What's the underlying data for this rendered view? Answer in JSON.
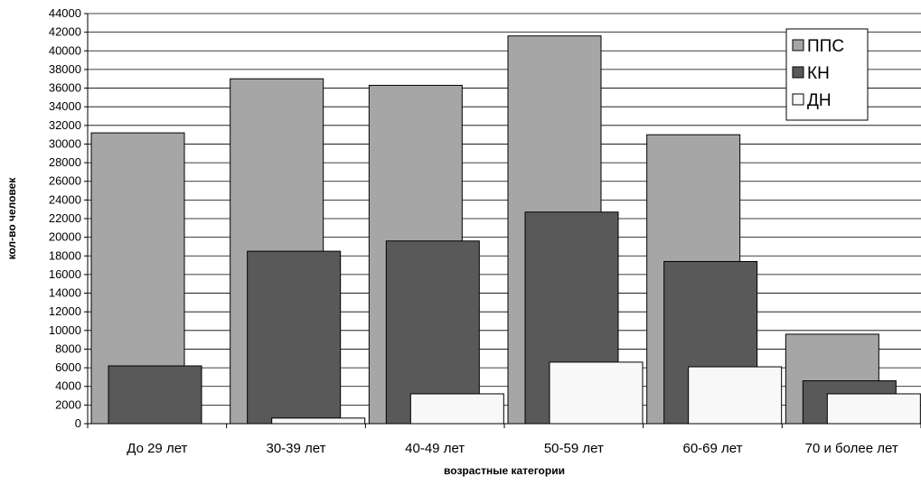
{
  "chart_data": {
    "type": "bar",
    "xlabel": "возрастные категории",
    "ylabel": "кол-во человек",
    "ylim": [
      0,
      44000
    ],
    "y_ticks": [
      0,
      2000,
      4000,
      6000,
      8000,
      10000,
      12000,
      14000,
      16000,
      18000,
      20000,
      22000,
      24000,
      26000,
      28000,
      30000,
      32000,
      34000,
      36000,
      38000,
      40000,
      42000,
      44000
    ],
    "grid": true,
    "legend_position": "top-right",
    "categories": [
      "До 29 лет",
      "30-39 лет",
      "40-49 лет",
      "50-59 лет",
      "60-69 лет",
      "70 и более лет"
    ],
    "series": [
      {
        "name": "ППС",
        "color": "#a6a6a6",
        "values": [
          31200,
          37000,
          36300,
          41600,
          31000,
          9600
        ]
      },
      {
        "name": "КН",
        "color": "#595959",
        "values": [
          6200,
          18500,
          19600,
          22700,
          17400,
          4600
        ]
      },
      {
        "name": "ДН",
        "color": "#f8f8f8",
        "values": [
          0,
          600,
          3200,
          6600,
          6100,
          3200
        ]
      }
    ]
  }
}
